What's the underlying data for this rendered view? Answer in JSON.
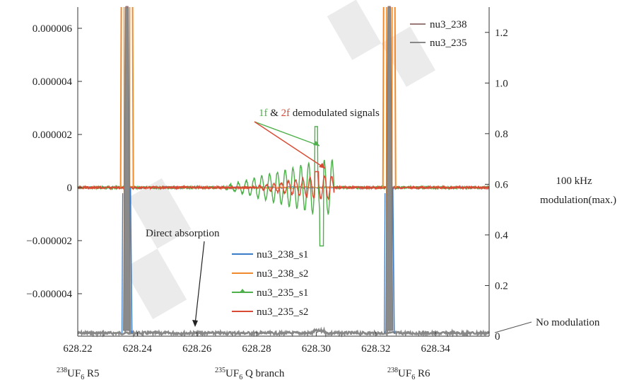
{
  "chart_data": {
    "type": "line",
    "xlim": [
      628.22,
      628.358
    ],
    "ylim_left": [
      -5.6e-06,
      6.8e-06
    ],
    "ylim_right": [
      0,
      1.3
    ],
    "x_ticks": [
      "628.22",
      "628.24",
      "628.26",
      "628.28",
      "628.30",
      "628.32",
      "628.34"
    ],
    "x_tick_values": [
      628.22,
      628.24,
      628.26,
      628.28,
      628.3,
      628.32,
      628.34
    ],
    "y_left_ticks": [
      "0.000006",
      "0.000004",
      "0.000002",
      "0",
      "−0.000002",
      "−0.000004"
    ],
    "y_left_tick_values": [
      6e-06,
      4e-06,
      2e-06,
      0,
      -2e-06,
      -4e-06
    ],
    "y_right_ticks": [
      "1.2",
      "1.0",
      "0.8",
      "0.6",
      "0.4",
      "0.2",
      "0"
    ],
    "y_right_tick_values": [
      1.2,
      1.0,
      0.8,
      0.6,
      0.4,
      0.2,
      0
    ],
    "series_right": [
      {
        "name": "nu3_238",
        "color": "#9a7a78",
        "peaks": [
          628.2365,
          628.3245
        ]
      },
      {
        "name": "nu3_235",
        "color": "#888888",
        "baseline": 0.012
      }
    ],
    "series_left": [
      {
        "name": "nu3_238_s1",
        "color": "#3b7cc9"
      },
      {
        "name": "nu3_238_s2",
        "color": "#f08a2c"
      },
      {
        "name": "nu3_235_s1",
        "color": "#4db04a"
      },
      {
        "name": "nu3_235_s2",
        "color": "#d94a34"
      }
    ],
    "annotation_demod": {
      "part1": "1f",
      "part2": " & ",
      "part3": "2f",
      "part4": " demodulated signals"
    },
    "annotation_direct": "Direct absorption",
    "annotation_mod_line1": "100 kHz",
    "annotation_mod_line2": "modulation(max.)",
    "annotation_nomod": "No modulation",
    "bottom_labels": [
      {
        "sup": "238",
        "main": "UF",
        "sub": "6",
        "suffix": " R5",
        "color": "#f08a2c"
      },
      {
        "sup": "235",
        "main": "UF",
        "sub": "6",
        "suffix": " Q branch",
        "color": "#4db04a"
      },
      {
        "sup": "238",
        "main": "UF",
        "sub": "6",
        "suffix": " R6",
        "color": "#f08a2c"
      }
    ]
  },
  "colors": {
    "green": "#4db04a",
    "red": "#d94a34",
    "orange": "#f08a2c",
    "blue": "#3b7cc9",
    "gray": "#888888"
  }
}
